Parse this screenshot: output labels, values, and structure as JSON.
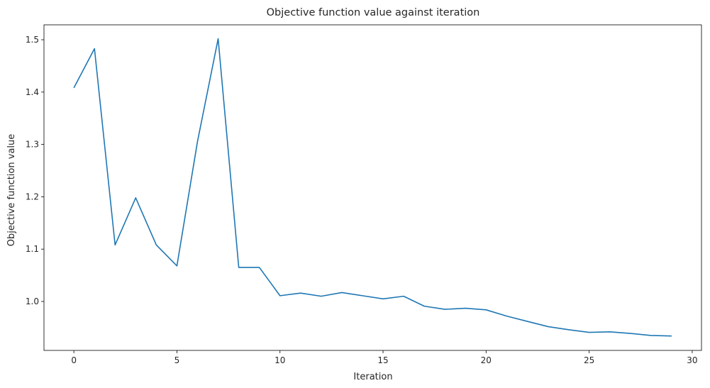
{
  "chart_data": {
    "type": "line",
    "title": "Objective function value against iteration",
    "xlabel": "Iteration",
    "ylabel": "Objective function value",
    "xlim": [
      -1.45,
      30.45
    ],
    "ylim": [
      0.9065,
      1.5285
    ],
    "xticks": [
      0,
      5,
      10,
      15,
      20,
      25,
      30
    ],
    "xtick_labels": [
      "0",
      "5",
      "10",
      "15",
      "20",
      "25",
      "30"
    ],
    "yticks": [
      1.0,
      1.1,
      1.2,
      1.3,
      1.4,
      1.5
    ],
    "ytick_labels": [
      "1.0",
      "1.1",
      "1.2",
      "1.3",
      "1.4",
      "1.5"
    ],
    "grid": false,
    "colors": {
      "line": "#1f77b4",
      "axes": "#000000",
      "text": "#262626"
    },
    "series": [
      {
        "x": [
          0,
          1,
          2,
          3,
          4,
          5,
          6,
          7,
          8,
          9,
          10,
          11,
          12,
          13,
          14,
          15,
          16,
          17,
          18,
          19,
          20,
          21,
          22,
          23,
          24,
          25,
          26,
          27,
          28,
          29
        ],
        "values": [
          1.408,
          1.483,
          1.108,
          1.198,
          1.108,
          1.068,
          1.306,
          1.502,
          1.065,
          1.065,
          1.011,
          1.016,
          1.01,
          1.017,
          1.011,
          1.005,
          1.01,
          0.991,
          0.985,
          0.987,
          0.984,
          0.972,
          0.962,
          0.952,
          0.946,
          0.941,
          0.942,
          0.939,
          0.935,
          0.934
        ]
      }
    ]
  }
}
